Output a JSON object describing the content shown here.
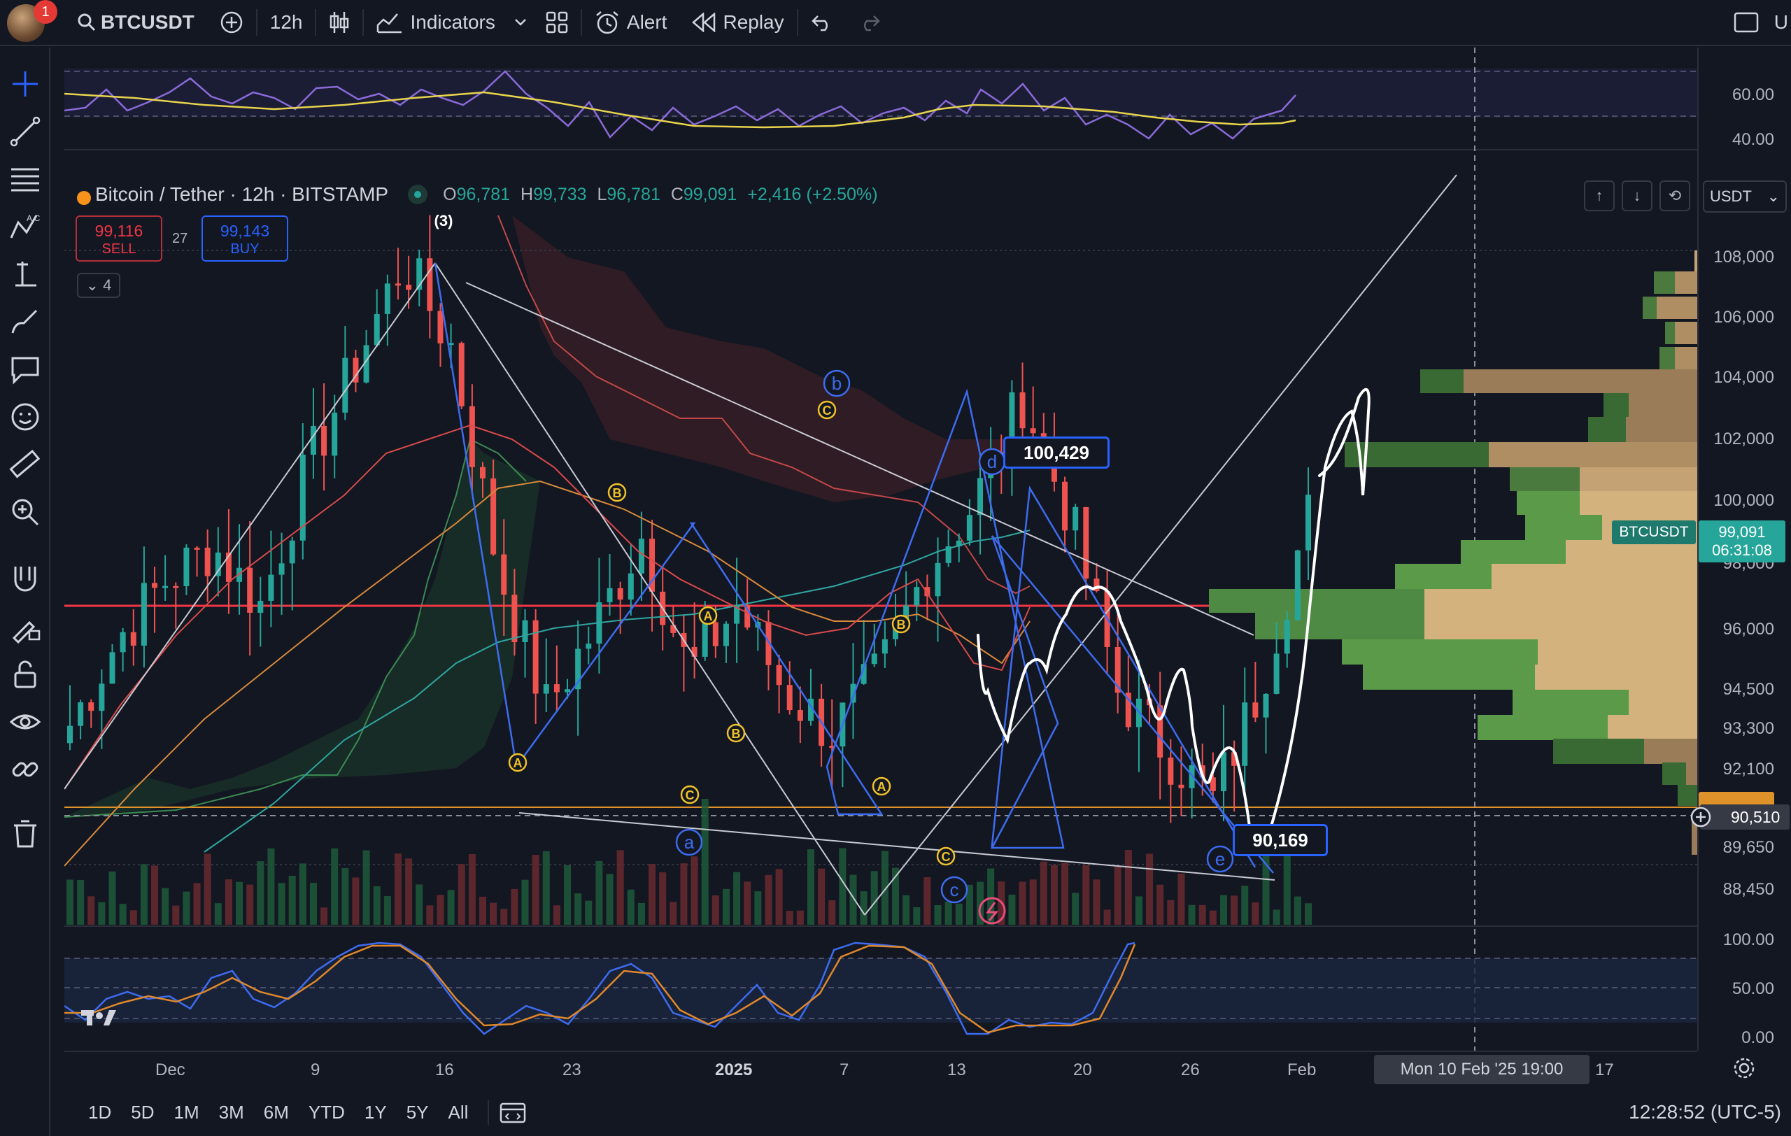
{
  "header": {
    "symbol": "BTCUSDT",
    "notification_count": "1",
    "interval": "12h",
    "indicators_label": "Indicators",
    "alert_label": "Alert",
    "replay_label": "Replay",
    "right_text": "U"
  },
  "legend": {
    "title": "Bitcoin / Tether · 12h · BITSTAMP",
    "open_label": "O",
    "open": "96,781",
    "high_label": "H",
    "high": "99,733",
    "low_label": "L",
    "low": "96,781",
    "close_label": "C",
    "close": "99,091",
    "change": "+2,416 (+2.50%)",
    "sell_price": "99,116",
    "sell_label": "SELL",
    "spread": "27",
    "buy_price": "99,143",
    "buy_label": "BUY",
    "collapsed_count": "4"
  },
  "price_axis": {
    "currency": "USDT",
    "rsi_labels": [
      "60.00",
      "40.00"
    ],
    "labels": [
      "108,000",
      "106,000",
      "104,000",
      "102,000",
      "100,000",
      "98,000",
      "96,000",
      "94,500",
      "93,300",
      "92,100",
      "89,650",
      "88,450"
    ],
    "stoch_labels": [
      "100.00",
      "50.00",
      "0.00"
    ],
    "ticker_tag": "BTCUSDT",
    "last_price": "99,091",
    "countdown": "06:31:08",
    "cross_price": "90,510"
  },
  "annotations": {
    "wave3": "(3)",
    "a": "a",
    "b": "b",
    "c": "c",
    "d": "d",
    "e": "e",
    "A": "A",
    "B": "B",
    "C": "C",
    "target_high": "100,429",
    "target_low": "90,169"
  },
  "time_axis": {
    "labels": [
      "Dec",
      "9",
      "16",
      "23",
      "2025",
      "7",
      "13",
      "20",
      "26",
      "Feb",
      "17"
    ],
    "crosshair_time": "Mon 10 Feb '25   19:00"
  },
  "bottom": {
    "ranges": [
      "1D",
      "5D",
      "1M",
      "3M",
      "6M",
      "YTD",
      "1Y",
      "5Y",
      "All"
    ],
    "clock": "12:28:52 (UTC-5)"
  },
  "colors": {
    "bg": "#131722",
    "up": "#26a69a",
    "down": "#ef5350",
    "blue": "#2962ff",
    "wave": "#3d6cf0",
    "label_yellow": "#f0c22a"
  },
  "chart_data": {
    "type": "candlestick",
    "symbol": "BTCUSDT",
    "interval": "12h",
    "ylim": [
      87500,
      109000
    ],
    "horizontal_levels": [
      97000,
      90700
    ],
    "series": [
      {
        "name": "price",
        "values": [
          93000,
          95500,
          97200,
          98200,
          96500,
          100500,
          103500,
          106500,
          104000,
          97500,
          93500,
          95800,
          98500,
          94500,
          96500,
          94000,
          92800,
          94500,
          97600,
          99500,
          102500,
          99000,
          94000,
          92300,
          90800,
          94200,
          99091
        ]
      }
    ]
  }
}
